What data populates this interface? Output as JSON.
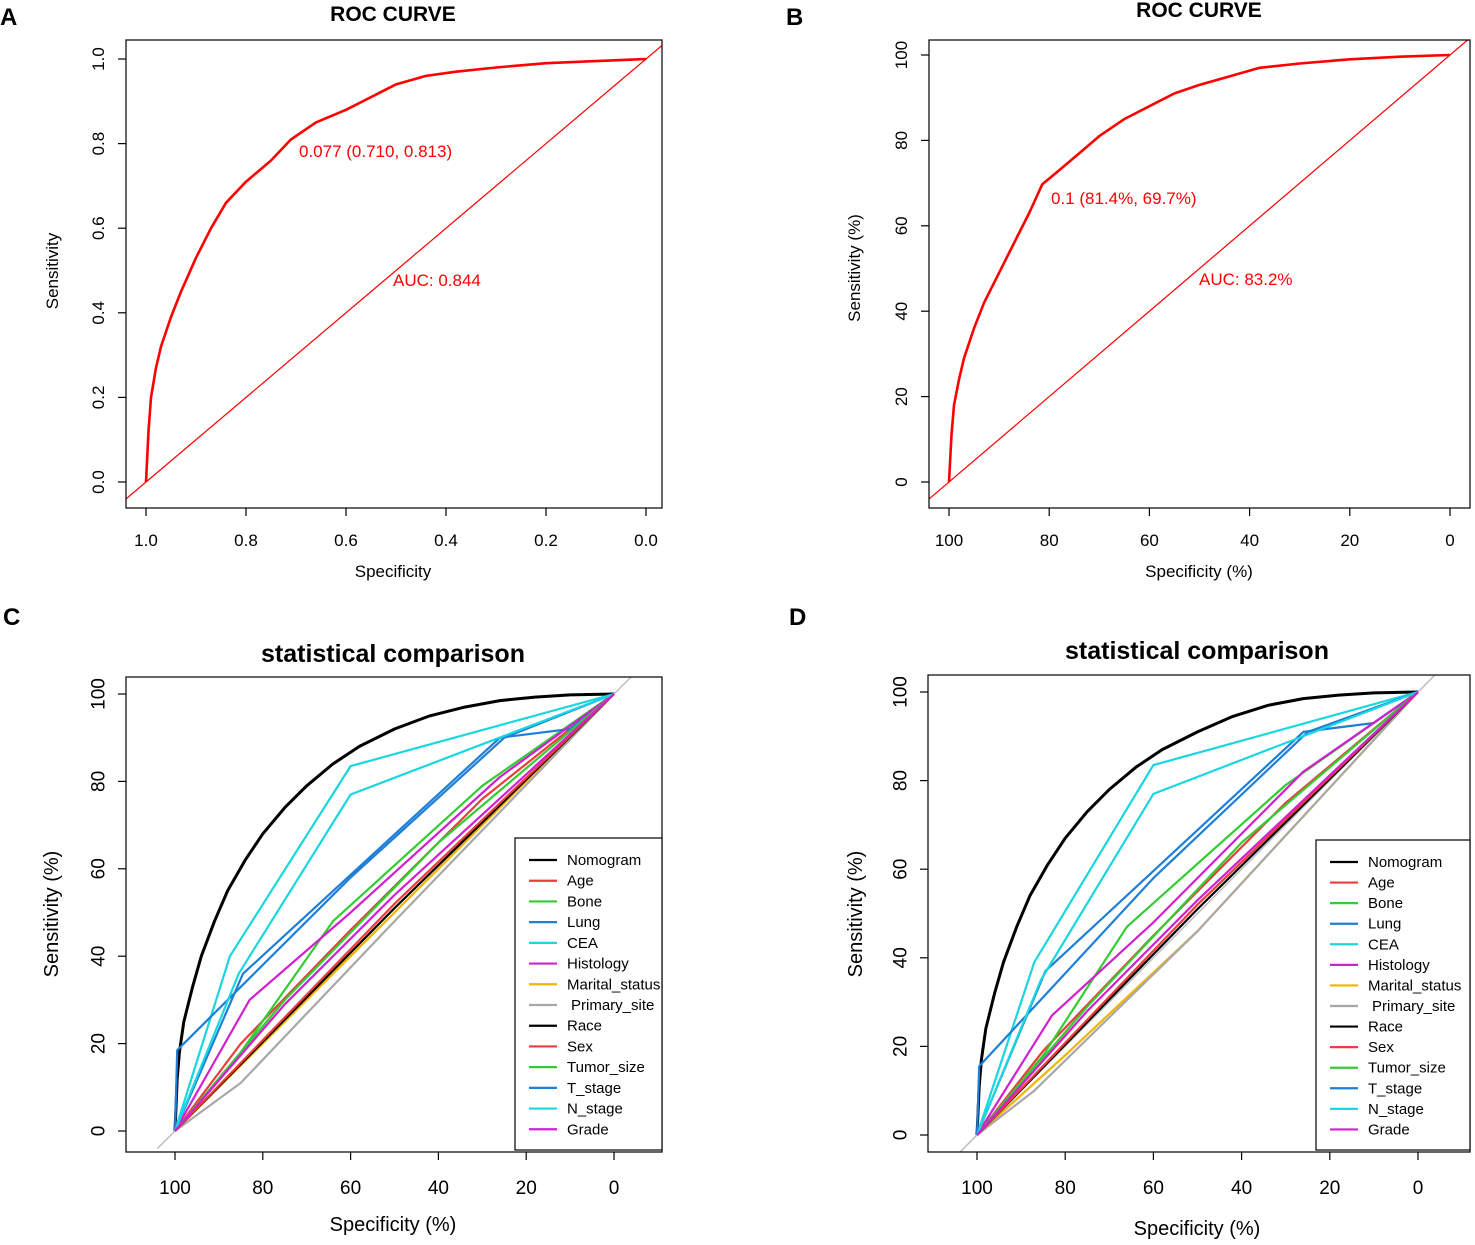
{
  "chart_data": [
    {
      "panel": "A",
      "type": "line",
      "title": "ROC CURVE",
      "xlabel": "Specificity",
      "ylabel": "Sensitivity",
      "xlim": [
        1.0,
        0.0
      ],
      "ylim": [
        0.0,
        1.0
      ],
      "xticks": [
        "1.0",
        "0.8",
        "0.6",
        "0.4",
        "0.2",
        "0.0"
      ],
      "yticks": [
        "0.0",
        "0.2",
        "0.4",
        "0.6",
        "0.8",
        "1.0"
      ],
      "series": [
        {
          "name": "ROC",
          "color": "#ff0000",
          "x": [
            1.0,
            0.995,
            0.99,
            0.98,
            0.97,
            0.95,
            0.93,
            0.9,
            0.87,
            0.84,
            0.8,
            0.75,
            0.71,
            0.66,
            0.6,
            0.55,
            0.5,
            0.44,
            0.38,
            0.3,
            0.2,
            0.1,
            0.0
          ],
          "y": [
            0.0,
            0.12,
            0.2,
            0.27,
            0.32,
            0.39,
            0.45,
            0.53,
            0.6,
            0.66,
            0.71,
            0.76,
            0.81,
            0.85,
            0.88,
            0.91,
            0.94,
            0.96,
            0.97,
            0.98,
            0.99,
            0.995,
            1.0
          ]
        }
      ],
      "diagonal": true,
      "annotations": [
        {
          "text": "0.077 (0.710, 0.813)",
          "x": 0.7,
          "y": 0.79
        },
        {
          "text": "AUC: 0.844",
          "x": 0.51,
          "y": 0.48
        }
      ]
    },
    {
      "panel": "B",
      "type": "line",
      "title": "ROC CURVE",
      "xlabel": "Specificity (%)",
      "ylabel": "Sensitivity (%)",
      "xlim": [
        100,
        0
      ],
      "ylim": [
        0,
        100
      ],
      "xticks": [
        "100",
        "80",
        "60",
        "40",
        "20",
        "0"
      ],
      "yticks": [
        "0",
        "20",
        "40",
        "60",
        "80",
        "100"
      ],
      "series": [
        {
          "name": "ROC",
          "color": "#ff0000",
          "x": [
            100,
            99.5,
            99,
            98,
            97,
            95,
            93,
            90,
            87,
            84,
            81.4,
            78,
            74,
            70,
            65,
            60,
            55,
            50,
            44,
            38,
            30,
            20,
            10,
            0
          ],
          "y": [
            0,
            11,
            18,
            24,
            29,
            36,
            42,
            49,
            56,
            63,
            69.7,
            73,
            77,
            81,
            85,
            88,
            91,
            93,
            95,
            97,
            98,
            99,
            99.6,
            100
          ]
        }
      ],
      "diagonal": true,
      "annotations": [
        {
          "text": "0.1 (81.4%, 69.7%)",
          "x": 80.5,
          "y": 65.5
        },
        {
          "text": "AUC: 83.2%",
          "x": 50,
          "y": 45
        }
      ]
    },
    {
      "panel": "C",
      "type": "line",
      "title": "statistical comparison",
      "xlabel": "Specificity (%)",
      "ylabel": "Sensitivity (%)",
      "xlim": [
        100,
        0
      ],
      "ylim": [
        0,
        100
      ],
      "xticks": [
        "100",
        "80",
        "60",
        "40",
        "20",
        "0"
      ],
      "yticks": [
        "0",
        "20",
        "40",
        "60",
        "80",
        "100"
      ],
      "series": [
        {
          "name": "Nomogram",
          "color": "#000000",
          "x": [
            100,
            99.5,
            99,
            98,
            96,
            94,
            91,
            88,
            84,
            80,
            75,
            70,
            64,
            58,
            50,
            42,
            34,
            26,
            18,
            10,
            0
          ],
          "y": [
            0,
            12,
            18,
            25,
            33,
            40,
            48,
            55,
            62,
            68,
            74,
            79,
            84,
            88,
            92,
            95,
            97,
            98.5,
            99.3,
            99.8,
            100
          ]
        },
        {
          "name": "Age",
          "color": "#ee3b3b",
          "x": [
            100,
            85,
            60,
            30,
            0
          ],
          "y": [
            0,
            20,
            46,
            76,
            100
          ]
        },
        {
          "name": "Bone",
          "color": "#33cc33",
          "x": [
            100,
            85,
            64,
            30,
            0
          ],
          "y": [
            0,
            18,
            48,
            79,
            100
          ]
        },
        {
          "name": "Lung",
          "color": "#1e7fd8",
          "x": [
            100,
            84.5,
            26,
            10,
            0
          ],
          "y": [
            0,
            36,
            90,
            92,
            100
          ]
        },
        {
          "name": "CEA",
          "color": "#19d6e0",
          "x": [
            100,
            87.5,
            60,
            0
          ],
          "y": [
            0,
            40,
            83.5,
            100
          ]
        },
        {
          "name": "Histology",
          "color": "#d020d0",
          "x": [
            100,
            83,
            60,
            26,
            0
          ],
          "y": [
            0,
            30,
            50,
            81,
            100
          ]
        },
        {
          "name": "Marital_status",
          "color": "#f2b400",
          "x": [
            100,
            80,
            50,
            0
          ],
          "y": [
            0,
            20,
            50,
            100
          ]
        },
        {
          "name": "Primary_site",
          "color": "#a8a8a8",
          "x": [
            100,
            85,
            50,
            0
          ],
          "y": [
            0,
            11,
            48,
            100
          ]
        },
        {
          "name": "Race",
          "color": "#000000",
          "x": [
            100,
            50,
            0
          ],
          "y": [
            0,
            51,
            100
          ]
        },
        {
          "name": "Sex",
          "color": "#ee3b3b",
          "x": [
            100,
            50,
            0
          ],
          "y": [
            0,
            52,
            100
          ]
        },
        {
          "name": "Tumor_size",
          "color": "#33cc33",
          "x": [
            100,
            75,
            40,
            0
          ],
          "y": [
            0,
            30,
            66,
            100
          ]
        },
        {
          "name": "T_stage",
          "color": "#1e7fd8",
          "x": [
            100,
            99.5,
            60,
            25,
            0
          ],
          "y": [
            0,
            18.5,
            58,
            90,
            100
          ]
        },
        {
          "name": "N_stage",
          "color": "#19d6e0",
          "x": [
            100,
            85.5,
            60,
            0
          ],
          "y": [
            0,
            36,
            77,
            100
          ]
        },
        {
          "name": "Grade",
          "color": "#d020d0",
          "x": [
            100,
            75,
            50,
            0
          ],
          "y": [
            0,
            29,
            54,
            100
          ]
        }
      ],
      "diagonal": true,
      "legend_position": "bottom-right"
    },
    {
      "panel": "D",
      "type": "line",
      "title": "statistical comparison",
      "xlabel": "Specificity (%)",
      "ylabel": "Sensitivity (%)",
      "xlim": [
        100,
        0
      ],
      "ylim": [
        0,
        100
      ],
      "xticks": [
        "100",
        "80",
        "60",
        "40",
        "20",
        "0"
      ],
      "yticks": [
        "0",
        "20",
        "40",
        "60",
        "80",
        "100"
      ],
      "series": [
        {
          "name": "Nomogram",
          "color": "#000000",
          "x": [
            100,
            99.5,
            99,
            98,
            96,
            94,
            91,
            88,
            84,
            80,
            75,
            70,
            64,
            58,
            50,
            42,
            34,
            26,
            18,
            10,
            0
          ],
          "y": [
            0,
            11,
            17,
            24,
            32,
            39,
            47,
            54,
            61,
            67,
            73,
            78,
            83,
            87,
            91,
            94.5,
            97,
            98.5,
            99.3,
            99.8,
            100
          ]
        },
        {
          "name": "Age",
          "color": "#ee3b3b",
          "x": [
            100,
            85,
            60,
            30,
            0
          ],
          "y": [
            0,
            19,
            45,
            75,
            100
          ]
        },
        {
          "name": "Bone",
          "color": "#33cc33",
          "x": [
            100,
            85,
            66,
            30,
            0
          ],
          "y": [
            0,
            18,
            47,
            79,
            100
          ]
        },
        {
          "name": "Lung",
          "color": "#1e7fd8",
          "x": [
            100,
            84.5,
            26,
            10,
            0
          ],
          "y": [
            0,
            37,
            91,
            93,
            100
          ]
        },
        {
          "name": "CEA",
          "color": "#19d6e0",
          "x": [
            100,
            87,
            60,
            0
          ],
          "y": [
            0,
            39,
            83.5,
            100
          ]
        },
        {
          "name": "Histology",
          "color": "#d020d0",
          "x": [
            100,
            83,
            60,
            26,
            0
          ],
          "y": [
            0,
            27,
            48,
            82,
            100
          ]
        },
        {
          "name": "Marital_status",
          "color": "#f2b400",
          "x": [
            100,
            80,
            50,
            0
          ],
          "y": [
            0,
            18,
            46,
            100
          ]
        },
        {
          "name": "Primary_site",
          "color": "#a8a8a8",
          "x": [
            100,
            87,
            50,
            0
          ],
          "y": [
            0,
            10,
            46,
            100
          ]
        },
        {
          "name": "Race",
          "color": "#000000",
          "x": [
            100,
            50,
            0
          ],
          "y": [
            0,
            51,
            100
          ]
        },
        {
          "name": "Sex",
          "color": "#ee3b3b",
          "x": [
            100,
            50,
            0
          ],
          "y": [
            0,
            52,
            100
          ]
        },
        {
          "name": "Tumor_size",
          "color": "#33cc33",
          "x": [
            100,
            75,
            40,
            0
          ],
          "y": [
            0,
            29,
            66,
            100
          ]
        },
        {
          "name": "T_stage",
          "color": "#1e7fd8",
          "x": [
            100,
            99.5,
            60,
            25,
            0
          ],
          "y": [
            0,
            15.5,
            58,
            91,
            100
          ]
        },
        {
          "name": "N_stage",
          "color": "#19d6e0",
          "x": [
            100,
            85.5,
            60,
            0
          ],
          "y": [
            0,
            35,
            77,
            100
          ]
        },
        {
          "name": "Grade",
          "color": "#d020d0",
          "x": [
            100,
            75,
            50,
            0
          ],
          "y": [
            0,
            28,
            53,
            100
          ]
        }
      ],
      "diagonal": true,
      "legend_position": "bottom-right"
    }
  ]
}
